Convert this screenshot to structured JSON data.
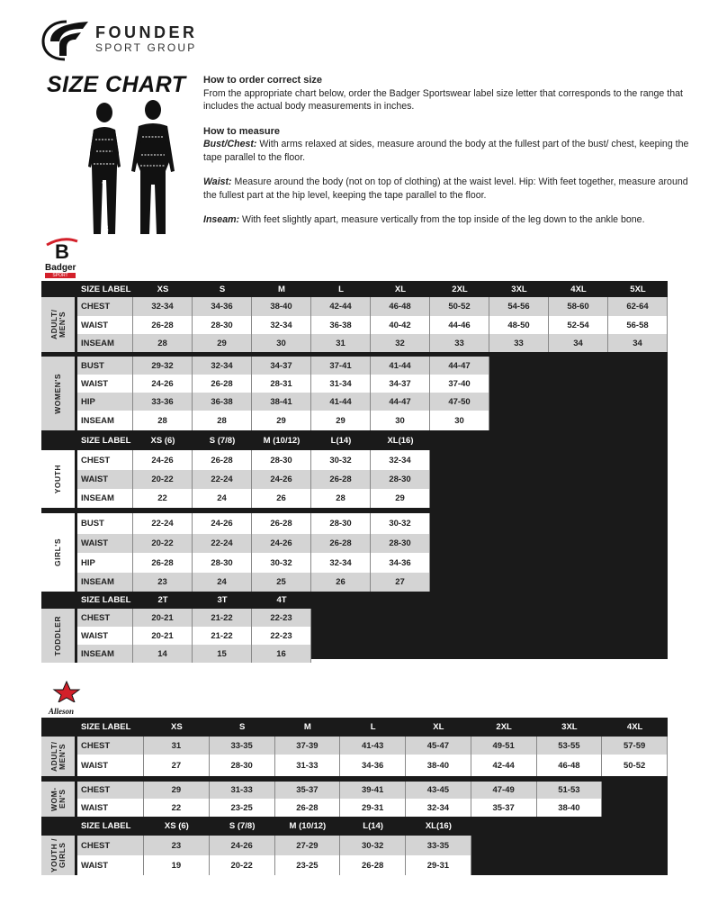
{
  "brand": {
    "name": "FOUNDER",
    "sub": "SPORT GROUP"
  },
  "title": "SIZE CHART",
  "info": {
    "order_heading": "How to order correct size",
    "order_text": "From the appropriate chart below, order the Badger Sportswear label size letter that corresponds to the range that includes the actual body measurements in inches.",
    "measure_heading": "How to measure",
    "bust_label": "Bust/Chest:",
    "bust_text": " With arms relaxed at sides, measure around the body at the fullest part of the bust/ chest, keeping the tape parallel to the floor.",
    "waist_label": "Waist:",
    "waist_text": " Measure around the body (not on top of clothing) at the waist level. Hip: With feet together, measure around the fullest part at the hip level, keeping the tape parallel to the floor.",
    "inseam_label": "Inseam:",
    "inseam_text": " With feet slightly apart, measure vertically from the top inside of the leg down to the ankle bone."
  },
  "logos": {
    "badger": "Badger",
    "badger_sub": "SPORT",
    "alleson": "Alleson"
  },
  "badger_table": {
    "sections": [
      {
        "header": {
          "label": "SIZE LABEL",
          "sizes": [
            "XS",
            "S",
            "M",
            "L",
            "XL",
            "2XL",
            "3XL",
            "4XL",
            "5XL"
          ]
        }
      },
      {
        "category": "ADULT/ MEN'S",
        "rows": [
          {
            "label": "CHEST",
            "values": [
              "32-34",
              "34-36",
              "38-40",
              "42-44",
              "46-48",
              "50-52",
              "54-56",
              "58-60",
              "62-64"
            ]
          },
          {
            "label": "WAIST",
            "values": [
              "26-28",
              "28-30",
              "32-34",
              "36-38",
              "40-42",
              "44-46",
              "48-50",
              "52-54",
              "56-58"
            ]
          },
          {
            "label": "INSEAM",
            "values": [
              "28",
              "29",
              "30",
              "31",
              "32",
              "33",
              "33",
              "34",
              "34"
            ]
          }
        ]
      },
      {
        "category": "WOMEN'S",
        "rows": [
          {
            "label": "BUST",
            "values": [
              "29-32",
              "32-34",
              "34-37",
              "37-41",
              "41-44",
              "44-47"
            ]
          },
          {
            "label": "WAIST",
            "values": [
              "24-26",
              "26-28",
              "28-31",
              "31-34",
              "34-37",
              "37-40"
            ]
          },
          {
            "label": "HIP",
            "values": [
              "33-36",
              "36-38",
              "38-41",
              "41-44",
              "44-47",
              "47-50"
            ]
          },
          {
            "label": "INSEAM",
            "values": [
              "28",
              "28",
              "29",
              "29",
              "30",
              "30"
            ]
          }
        ]
      },
      {
        "header": {
          "label": "SIZE LABEL",
          "sizes": [
            "XS (6)",
            "S (7/8)",
            "M (10/12)",
            "L(14)",
            "XL(16)"
          ]
        }
      },
      {
        "category": "YOUTH",
        "rows": [
          {
            "label": "CHEST",
            "values": [
              "24-26",
              "26-28",
              "28-30",
              "30-32",
              "32-34"
            ]
          },
          {
            "label": "WAIST",
            "values": [
              "20-22",
              "22-24",
              "24-26",
              "26-28",
              "28-30"
            ]
          },
          {
            "label": "INSEAM",
            "values": [
              "22",
              "24",
              "26",
              "28",
              "29"
            ]
          }
        ]
      },
      {
        "category": "GIRL'S",
        "rows": [
          {
            "label": "BUST",
            "values": [
              "22-24",
              "24-26",
              "26-28",
              "28-30",
              "30-32"
            ]
          },
          {
            "label": "WAIST",
            "values": [
              "20-22",
              "22-24",
              "24-26",
              "26-28",
              "28-30"
            ]
          },
          {
            "label": "HIP",
            "values": [
              "26-28",
              "28-30",
              "30-32",
              "32-34",
              "34-36"
            ]
          },
          {
            "label": "INSEAM",
            "values": [
              "23",
              "24",
              "25",
              "26",
              "27"
            ]
          }
        ]
      },
      {
        "header": {
          "label": "SIZE LABEL",
          "sizes": [
            "2T",
            "3T",
            "4T"
          ]
        }
      },
      {
        "category": "TODDLER",
        "rows": [
          {
            "label": "CHEST",
            "values": [
              "20-21",
              "21-22",
              "22-23"
            ]
          },
          {
            "label": "WAIST",
            "values": [
              "20-21",
              "21-22",
              "22-23"
            ]
          },
          {
            "label": "INSEAM",
            "values": [
              "14",
              "15",
              "16"
            ]
          }
        ]
      }
    ]
  },
  "alleson_table": {
    "sections": [
      {
        "header": {
          "label": "SIZE LABEL",
          "sizes": [
            "XS",
            "S",
            "M",
            "L",
            "XL",
            "2XL",
            "3XL",
            "4XL"
          ]
        }
      },
      {
        "category": "ADULT/ MEN'S",
        "rows": [
          {
            "label": "CHEST",
            "values": [
              "31",
              "33-35",
              "37-39",
              "41-43",
              "45-47",
              "49-51",
              "53-55",
              "57-59"
            ]
          },
          {
            "label": "WAIST",
            "values": [
              "27",
              "28-30",
              "31-33",
              "34-36",
              "38-40",
              "42-44",
              "46-48",
              "50-52"
            ]
          }
        ]
      },
      {
        "category": "WOM- EN'S",
        "rows": [
          {
            "label": "CHEST",
            "values": [
              "29",
              "31-33",
              "35-37",
              "39-41",
              "43-45",
              "47-49",
              "51-53"
            ]
          },
          {
            "label": "WAIST",
            "values": [
              "22",
              "23-25",
              "26-28",
              "29-31",
              "32-34",
              "35-37",
              "38-40"
            ]
          }
        ]
      },
      {
        "header": {
          "label": "SIZE LABEL",
          "sizes": [
            "XS (6)",
            "S (7/8)",
            "M (10/12)",
            "L(14)",
            "XL(16)"
          ]
        }
      },
      {
        "category": "YOUTH / GIRLS",
        "rows": [
          {
            "label": "CHEST",
            "values": [
              "23",
              "24-26",
              "27-29",
              "30-32",
              "33-35"
            ]
          },
          {
            "label": "WAIST",
            "values": [
              "19",
              "20-22",
              "23-25",
              "26-28",
              "29-31"
            ]
          }
        ]
      }
    ]
  },
  "colors": {
    "gray_row": "#d4d4d4",
    "white_row": "#ffffff",
    "dark": "#1a1a1a",
    "badger_red": "#d3202a",
    "alleson_red": "#d3202a"
  }
}
